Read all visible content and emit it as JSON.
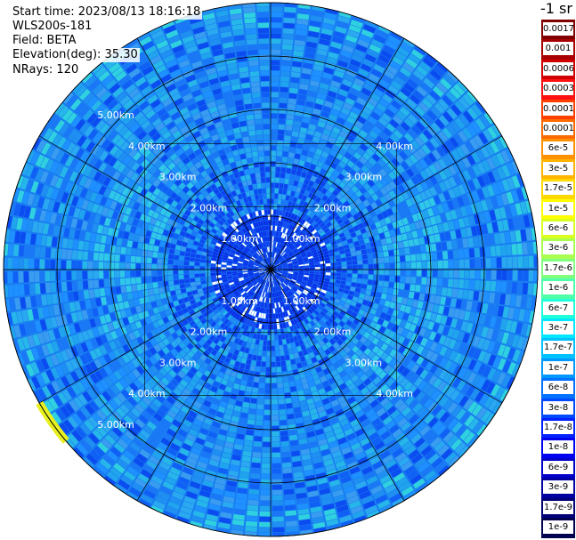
{
  "header": {
    "start_time": "Start time: 2023/08/13 18:16:18",
    "instrument": "WLS200s-181",
    "field": "Field: BETA",
    "elevation": "Elevation(deg): 35.30",
    "nrays": "NRays: 120"
  },
  "ppi": {
    "range_labels": [
      "1.00km",
      "2.00km",
      "3.00km",
      "4.00km",
      "5.00km"
    ],
    "nrays": 120,
    "max_range_km": 5.0
  },
  "colorbar": {
    "unit_label": "-1 sr",
    "labels": [
      "0.0017",
      "0.001",
      "0.0006",
      "0.0003",
      "0.00017",
      "0.0001",
      "6e-5",
      "3e-5",
      "1.7e-5",
      "1e-5",
      "6e-6",
      "3e-6",
      "1.7e-6",
      "1e-6",
      "6e-7",
      "3e-7",
      "1.7e-7",
      "1e-7",
      "6e-8",
      "3e-8",
      "1.7e-8",
      "1e-8",
      "6e-9",
      "3e-9",
      "1.7e-9",
      "1e-9"
    ],
    "colors": [
      "#800000",
      "#a80000",
      "#d00000",
      "#ff1010",
      "#ff4000",
      "#ff6a00",
      "#ff9000",
      "#ffb400",
      "#ffd800",
      "#ffff00",
      "#d8ff20",
      "#a8ff50",
      "#80ff80",
      "#50ffaa",
      "#20ffd8",
      "#00e8ff",
      "#00c0ff",
      "#0098ff",
      "#0070ff",
      "#0048ff",
      "#0020ff",
      "#0000f0",
      "#0000c8",
      "#0000a0",
      "#000078",
      "#000050"
    ]
  }
}
